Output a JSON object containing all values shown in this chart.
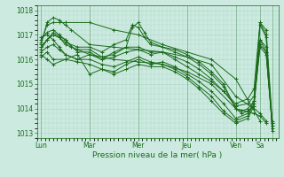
{
  "background_color": "#cceae0",
  "plot_bg_color": "#cceae0",
  "line_color": "#1a6b1a",
  "grid_color": "#b0d8cc",
  "tick_color": "#1a6b1a",
  "xlabel": "Pression niveau de la mer( hPa )",
  "ylim": [
    1012.8,
    1018.2
  ],
  "yticks": [
    1013,
    1014,
    1015,
    1016,
    1017,
    1018
  ],
  "xlim": [
    -4,
    234
  ],
  "day_positions": [
    0,
    48,
    96,
    144,
    192,
    216,
    228
  ],
  "day_labels": [
    "Lun",
    "Mar",
    "Mer",
    "Jeu",
    "Ven",
    "Sa"
  ],
  "series": [
    [
      0,
      1016.7,
      6,
      1017.4,
      12,
      1017.5,
      18,
      1017.5,
      24,
      1017.5,
      48,
      1017.5,
      72,
      1017.2,
      96,
      1017.0,
      120,
      1016.6,
      144,
      1016.3,
      168,
      1016.0,
      192,
      1015.2,
      216,
      1013.5
    ],
    [
      0,
      1016.6,
      6,
      1017.5,
      12,
      1017.7,
      18,
      1017.6,
      24,
      1017.4,
      30,
      1017.2,
      48,
      1016.6,
      72,
      1016.5,
      96,
      1016.4,
      120,
      1016.3,
      144,
      1016.1,
      168,
      1015.8,
      192,
      1014.5,
      210,
      1014.0,
      216,
      1013.8,
      222,
      1013.5
    ],
    [
      0,
      1016.5,
      6,
      1016.8,
      12,
      1017.0,
      18,
      1016.9,
      24,
      1016.6,
      48,
      1016.2,
      72,
      1016.0,
      96,
      1015.9,
      120,
      1015.8,
      144,
      1015.5,
      168,
      1015.0,
      192,
      1014.0,
      210,
      1013.8,
      216,
      1013.7,
      222,
      1013.4
    ],
    [
      0,
      1016.3,
      6,
      1016.5,
      12,
      1016.6,
      18,
      1016.4,
      24,
      1016.2,
      36,
      1016.0,
      48,
      1016.2,
      60,
      1016.0,
      72,
      1016.3,
      84,
      1016.5,
      90,
      1017.3,
      96,
      1017.5,
      102,
      1017.1,
      108,
      1016.7,
      120,
      1016.5,
      132,
      1016.4,
      144,
      1016.2,
      156,
      1015.9,
      168,
      1015.5,
      180,
      1015.0,
      192,
      1014.0,
      198,
      1013.8,
      204,
      1013.9,
      210,
      1014.1,
      216,
      1017.5,
      222,
      1017.0,
      228,
      1013.1
    ],
    [
      0,
      1016.4,
      6,
      1016.8,
      12,
      1017.0,
      18,
      1016.9,
      24,
      1016.7,
      36,
      1016.5,
      48,
      1016.5,
      60,
      1016.3,
      72,
      1016.6,
      84,
      1016.8,
      90,
      1017.4,
      96,
      1017.3,
      102,
      1016.9,
      108,
      1016.6,
      120,
      1016.5,
      132,
      1016.3,
      144,
      1016.1,
      156,
      1015.8,
      168,
      1015.4,
      180,
      1014.9,
      192,
      1014.0,
      198,
      1013.9,
      204,
      1014.0,
      210,
      1014.3,
      216,
      1017.4,
      222,
      1016.9,
      228,
      1013.2
    ],
    [
      0,
      1016.5,
      12,
      1017.1,
      24,
      1016.8,
      36,
      1016.3,
      48,
      1016.3,
      60,
      1016.0,
      72,
      1016.1,
      84,
      1016.3,
      96,
      1016.4,
      108,
      1016.2,
      120,
      1016.3,
      132,
      1016.1,
      144,
      1015.9,
      156,
      1015.6,
      168,
      1015.2,
      180,
      1014.7,
      192,
      1014.1,
      204,
      1014.2,
      210,
      1014.5,
      216,
      1016.8,
      222,
      1016.3,
      228,
      1013.4
    ],
    [
      0,
      1016.8,
      6,
      1017.1,
      12,
      1017.2,
      18,
      1017.0,
      24,
      1016.8,
      30,
      1016.5,
      36,
      1016.4,
      48,
      1016.4,
      60,
      1016.1,
      72,
      1016.2,
      84,
      1016.5,
      96,
      1016.5,
      108,
      1016.3,
      120,
      1016.3,
      132,
      1016.0,
      144,
      1015.7,
      156,
      1015.4,
      168,
      1015.1,
      180,
      1014.7,
      192,
      1014.2,
      204,
      1014.4,
      210,
      1014.8,
      216,
      1017.5,
      222,
      1017.2,
      228,
      1013.5
    ],
    [
      0,
      1016.2,
      6,
      1016.0,
      12,
      1015.8,
      24,
      1016.0,
      36,
      1016.2,
      48,
      1015.4,
      60,
      1015.6,
      72,
      1015.5,
      84,
      1015.8,
      96,
      1016.0,
      108,
      1015.8,
      120,
      1015.9,
      132,
      1015.7,
      144,
      1015.4,
      156,
      1015.1,
      168,
      1014.7,
      180,
      1014.2,
      192,
      1013.6,
      204,
      1013.8,
      210,
      1014.3,
      216,
      1016.5,
      222,
      1016.2,
      228,
      1013.3
    ],
    [
      0,
      1016.9,
      6,
      1017.0,
      12,
      1016.8,
      18,
      1016.5,
      24,
      1016.2,
      36,
      1016.0,
      48,
      1016.0,
      60,
      1015.8,
      72,
      1015.7,
      84,
      1015.9,
      96,
      1016.1,
      108,
      1015.9,
      120,
      1015.8,
      132,
      1015.6,
      144,
      1015.3,
      156,
      1014.9,
      168,
      1014.5,
      180,
      1013.9,
      192,
      1013.5,
      204,
      1013.7,
      210,
      1014.2,
      216,
      1016.8,
      222,
      1016.5,
      228,
      1013.4
    ],
    [
      0,
      1016.1,
      6,
      1016.3,
      12,
      1016.0,
      24,
      1016.0,
      36,
      1015.9,
      48,
      1015.8,
      60,
      1015.6,
      72,
      1015.4,
      84,
      1015.6,
      96,
      1015.8,
      108,
      1015.7,
      120,
      1015.7,
      132,
      1015.5,
      144,
      1015.2,
      156,
      1014.8,
      168,
      1014.3,
      180,
      1013.8,
      192,
      1013.4,
      204,
      1013.6,
      210,
      1014.1,
      216,
      1016.6,
      222,
      1016.3,
      228,
      1013.3
    ]
  ]
}
